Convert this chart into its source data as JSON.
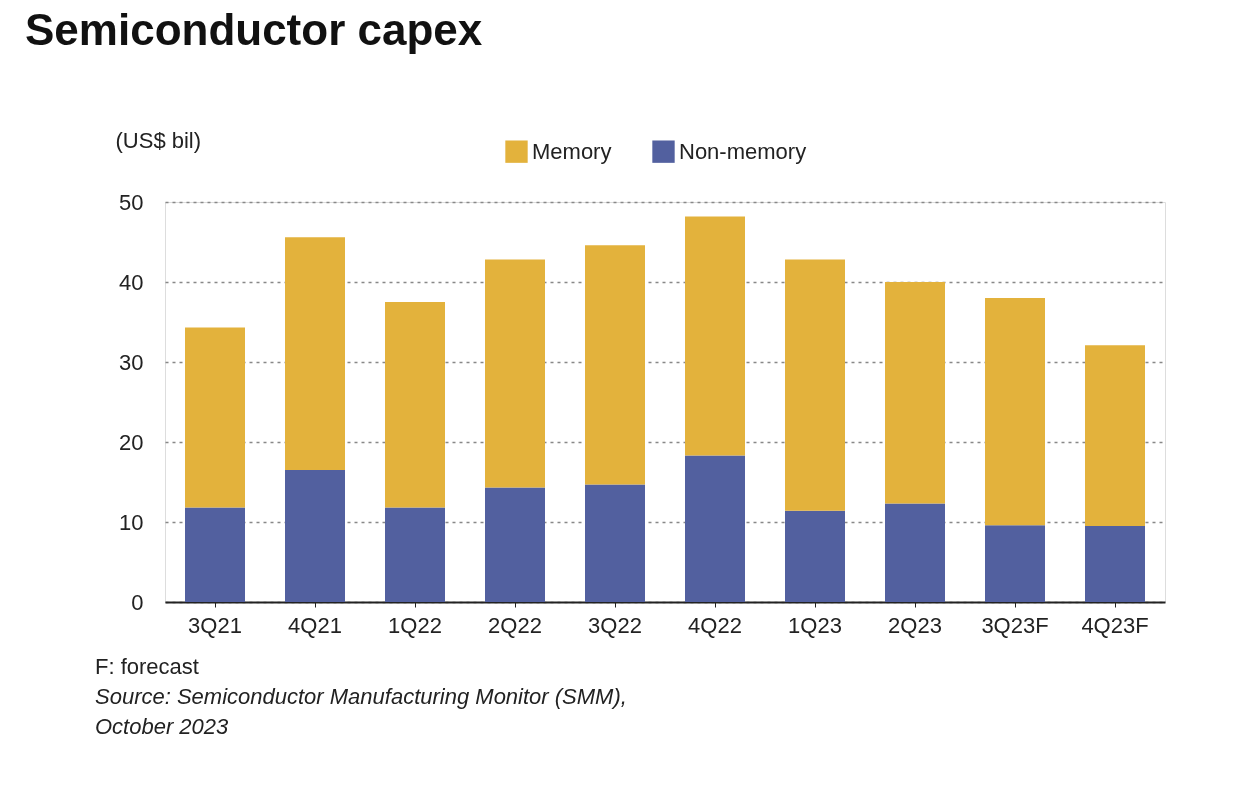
{
  "chart_data": {
    "type": "bar",
    "title": "Semiconductor capex",
    "ylabel": "(US$ bil)",
    "categories": [
      "3Q21",
      "4Q21",
      "1Q22",
      "2Q22",
      "3Q22",
      "4Q22",
      "1Q23",
      "2Q23",
      "3Q23F",
      "4Q23F"
    ],
    "stacked": true,
    "series": [
      {
        "name": "Non-memory",
        "color": "#52609f",
        "values": [
          11.8,
          16.5,
          11.8,
          14.3,
          14.7,
          18.3,
          11.4,
          12.3,
          9.6,
          9.5
        ]
      },
      {
        "name": "Memory",
        "color": "#e3b23c",
        "values": [
          22.5,
          29.1,
          25.7,
          28.5,
          29.9,
          29.9,
          31.4,
          27.7,
          28.4,
          22.6
        ]
      }
    ],
    "ylim": [
      0,
      50
    ],
    "yticks": [
      0,
      10,
      20,
      30,
      40,
      50
    ],
    "grid": "y",
    "legend": "top",
    "annotations": [
      "F: forecast",
      "Source: Semiconductor Manufacturing Monitor (SMM), October 2023"
    ]
  }
}
